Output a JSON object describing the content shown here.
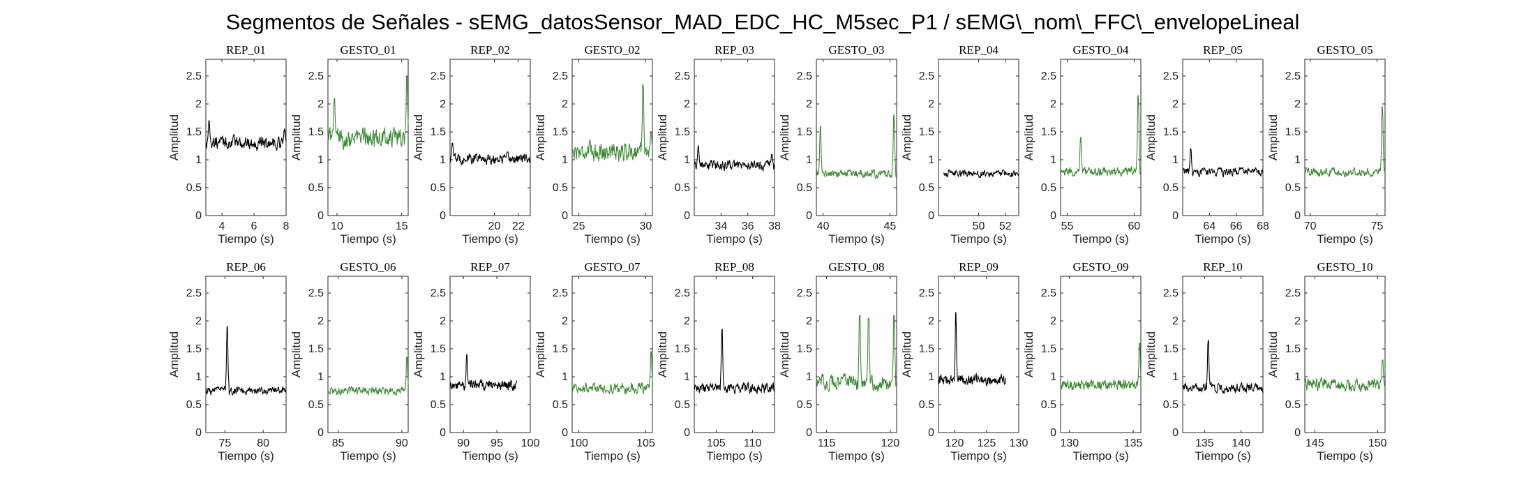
{
  "figure": {
    "title": "Segmentos de Señales - sEMG_datosSensor_MAD_EDC_HC_M5sec_P1 / sEMG\\_nom\\_FFC\\_envelopeLineal"
  },
  "colors": {
    "rep": "#000000",
    "gesto": "#3d8a34",
    "axis": "#262626"
  },
  "chart_data": [
    {
      "type": "line",
      "title": "REP_01",
      "xlabel": "Tiempo (s)",
      "ylabel": "Amplitud",
      "xlim": [
        3,
        8
      ],
      "ylim": [
        0,
        2.8
      ],
      "xticks": [
        4,
        6,
        8
      ],
      "yticks": [
        0,
        0.5,
        1,
        1.5,
        2,
        2.5
      ],
      "series": [
        {
          "color": "#000000",
          "x_range": [
            3,
            8
          ],
          "base": 1.3,
          "noise": 0.16,
          "spikes": [
            [
              3.2,
              1.7
            ],
            [
              7.9,
              1.55
            ]
          ]
        }
      ]
    },
    {
      "type": "line",
      "title": "GESTO_01",
      "xlabel": "Tiempo (s)",
      "ylabel": "Amplitud",
      "xlim": [
        9.3,
        15.5
      ],
      "ylim": [
        0,
        2.8
      ],
      "xticks": [
        10,
        15
      ],
      "yticks": [
        0,
        0.5,
        1,
        1.5,
        2,
        2.5
      ],
      "series": [
        {
          "color": "#3d8a34",
          "x_range": [
            9.3,
            15.5
          ],
          "base": 1.4,
          "noise": 0.24,
          "spikes": [
            [
              9.8,
              2.1
            ],
            [
              15.4,
              2.5
            ]
          ]
        }
      ]
    },
    {
      "type": "line",
      "title": "REP_02",
      "xlabel": "Tiempo (s)",
      "ylabel": "Amplitud",
      "xlim": [
        16.3,
        23
      ],
      "ylim": [
        0,
        2.8
      ],
      "xticks": [
        20,
        22
      ],
      "yticks": [
        0,
        0.5,
        1,
        1.5,
        2,
        2.5
      ],
      "series": [
        {
          "color": "#000000",
          "x_range": [
            16.3,
            23
          ],
          "base": 1.02,
          "noise": 0.13,
          "spikes": [
            [
              16.5,
              1.3
            ]
          ]
        }
      ]
    },
    {
      "type": "line",
      "title": "GESTO_02",
      "xlabel": "Tiempo (s)",
      "ylabel": "Amplitud",
      "xlim": [
        24.5,
        30.5
      ],
      "ylim": [
        0,
        2.8
      ],
      "xticks": [
        25,
        30
      ],
      "yticks": [
        0,
        0.5,
        1,
        1.5,
        2,
        2.5
      ],
      "series": [
        {
          "color": "#3d8a34",
          "x_range": [
            24.5,
            30.5
          ],
          "base": 1.15,
          "noise": 0.22,
          "spikes": [
            [
              29.8,
              2.35
            ],
            [
              30.4,
              1.5
            ]
          ]
        }
      ]
    },
    {
      "type": "line",
      "title": "REP_03",
      "xlabel": "Tiempo (s)",
      "ylabel": "Amplitud",
      "xlim": [
        32,
        38
      ],
      "ylim": [
        0,
        2.8
      ],
      "xticks": [
        34,
        36,
        38
      ],
      "yticks": [
        0,
        0.5,
        1,
        1.5,
        2,
        2.5
      ],
      "series": [
        {
          "color": "#000000",
          "x_range": [
            32,
            38
          ],
          "base": 0.9,
          "noise": 0.12,
          "spikes": [
            [
              32.3,
              1.25
            ],
            [
              37.8,
              1.1
            ]
          ]
        }
      ]
    },
    {
      "type": "line",
      "title": "GESTO_03",
      "xlabel": "Tiempo (s)",
      "ylabel": "Amplitud",
      "xlim": [
        39.5,
        45.5
      ],
      "ylim": [
        0,
        2.8
      ],
      "xticks": [
        40,
        45
      ],
      "yticks": [
        0,
        0.5,
        1,
        1.5,
        2,
        2.5
      ],
      "series": [
        {
          "color": "#3d8a34",
          "x_range": [
            39.5,
            45.5
          ],
          "base": 0.75,
          "noise": 0.1,
          "spikes": [
            [
              39.8,
              1.6
            ],
            [
              45.3,
              1.8
            ]
          ]
        }
      ]
    },
    {
      "type": "line",
      "title": "REP_04",
      "xlabel": "Tiempo (s)",
      "ylabel": "Amplitud",
      "xlim": [
        47,
        53
      ],
      "ylim": [
        0,
        2.8
      ],
      "xticks": [
        50,
        52
      ],
      "yticks": [
        0,
        0.5,
        1,
        1.5,
        2,
        2.5
      ],
      "series": [
        {
          "color": "#000000",
          "x_range": [
            47.4,
            53
          ],
          "base": 0.75,
          "noise": 0.08,
          "spikes": []
        }
      ]
    },
    {
      "type": "line",
      "title": "GESTO_04",
      "xlabel": "Tiempo (s)",
      "ylabel": "Amplitud",
      "xlim": [
        54.5,
        60.5
      ],
      "ylim": [
        0,
        2.8
      ],
      "xticks": [
        55,
        60
      ],
      "yticks": [
        0,
        0.5,
        1,
        1.5,
        2,
        2.5
      ],
      "series": [
        {
          "color": "#3d8a34",
          "x_range": [
            54.5,
            60.5
          ],
          "base": 0.78,
          "noise": 0.11,
          "spikes": [
            [
              56.0,
              1.4
            ],
            [
              60.3,
              2.15
            ]
          ]
        }
      ]
    },
    {
      "type": "line",
      "title": "REP_05",
      "xlabel": "Tiempo (s)",
      "ylabel": "Amplitud",
      "xlim": [
        62,
        68
      ],
      "ylim": [
        0,
        2.8
      ],
      "xticks": [
        64,
        66,
        68
      ],
      "yticks": [
        0,
        0.5,
        1,
        1.5,
        2,
        2.5
      ],
      "series": [
        {
          "color": "#000000",
          "x_range": [
            62,
            68
          ],
          "base": 0.78,
          "noise": 0.1,
          "spikes": [
            [
              62.6,
              1.2
            ]
          ]
        }
      ]
    },
    {
      "type": "line",
      "title": "GESTO_05",
      "xlabel": "Tiempo (s)",
      "ylabel": "Amplitud",
      "xlim": [
        69.6,
        75.6
      ],
      "ylim": [
        0,
        2.8
      ],
      "xticks": [
        70,
        75
      ],
      "yticks": [
        0,
        0.5,
        1,
        1.5,
        2,
        2.5
      ],
      "series": [
        {
          "color": "#3d8a34",
          "x_range": [
            69.6,
            75.6
          ],
          "base": 0.78,
          "noise": 0.1,
          "spikes": [
            [
              75.4,
              1.95
            ]
          ]
        }
      ]
    },
    {
      "type": "line",
      "title": "REP_06",
      "xlabel": "Tiempo (s)",
      "ylabel": "Amplitud",
      "xlim": [
        72.5,
        83
      ],
      "ylim": [
        0,
        2.8
      ],
      "xticks": [
        75,
        80
      ],
      "yticks": [
        0,
        0.5,
        1,
        1.5,
        2,
        2.5
      ],
      "series": [
        {
          "color": "#000000",
          "x_range": [
            72.5,
            83
          ],
          "base": 0.75,
          "noise": 0.09,
          "spikes": [
            [
              75.3,
              1.9
            ]
          ]
        }
      ]
    },
    {
      "type": "line",
      "title": "GESTO_06",
      "xlabel": "Tiempo (s)",
      "ylabel": "Amplitud",
      "xlim": [
        84.2,
        90.5
      ],
      "ylim": [
        0,
        2.8
      ],
      "xticks": [
        85,
        90
      ],
      "yticks": [
        0,
        0.5,
        1,
        1.5,
        2,
        2.5
      ],
      "series": [
        {
          "color": "#3d8a34",
          "x_range": [
            84.2,
            90.5
          ],
          "base": 0.75,
          "noise": 0.1,
          "spikes": [
            [
              90.4,
              1.35
            ]
          ]
        }
      ]
    },
    {
      "type": "line",
      "title": "REP_07",
      "xlabel": "Tiempo (s)",
      "ylabel": "Amplitud",
      "xlim": [
        88,
        100
      ],
      "ylim": [
        0,
        2.8
      ],
      "xticks": [
        90,
        95,
        100
      ],
      "yticks": [
        0,
        0.5,
        1,
        1.5,
        2,
        2.5
      ],
      "series": [
        {
          "color": "#000000",
          "x_range": [
            88,
            98
          ],
          "base": 0.85,
          "noise": 0.12,
          "spikes": [
            [
              90.5,
              1.4
            ]
          ]
        }
      ]
    },
    {
      "type": "line",
      "title": "GESTO_07",
      "xlabel": "Tiempo (s)",
      "ylabel": "Amplitud",
      "xlim": [
        99.5,
        105.5
      ],
      "ylim": [
        0,
        2.8
      ],
      "xticks": [
        100,
        105
      ],
      "yticks": [
        0,
        0.5,
        1,
        1.5,
        2,
        2.5
      ],
      "series": [
        {
          "color": "#3d8a34",
          "x_range": [
            99.5,
            105.5
          ],
          "base": 0.8,
          "noise": 0.13,
          "spikes": [
            [
              105.4,
              1.45
            ]
          ]
        }
      ]
    },
    {
      "type": "line",
      "title": "REP_08",
      "xlabel": "Tiempo (s)",
      "ylabel": "Amplitud",
      "xlim": [
        102,
        113
      ],
      "ylim": [
        0,
        2.8
      ],
      "xticks": [
        105,
        110
      ],
      "yticks": [
        0,
        0.5,
        1,
        1.5,
        2,
        2.5
      ],
      "series": [
        {
          "color": "#000000",
          "x_range": [
            102,
            113
          ],
          "base": 0.8,
          "noise": 0.12,
          "spikes": [
            [
              105.8,
              1.85
            ]
          ]
        }
      ]
    },
    {
      "type": "line",
      "title": "GESTO_08",
      "xlabel": "Tiempo (s)",
      "ylabel": "Amplitud",
      "xlim": [
        114.2,
        120.5
      ],
      "ylim": [
        0,
        2.8
      ],
      "xticks": [
        115,
        120
      ],
      "yticks": [
        0,
        0.5,
        1,
        1.5,
        2,
        2.5
      ],
      "series": [
        {
          "color": "#3d8a34",
          "x_range": [
            114.2,
            120.5
          ],
          "base": 0.9,
          "noise": 0.18,
          "spikes": [
            [
              117.6,
              2.1
            ],
            [
              118.3,
              2.05
            ],
            [
              120.3,
              2.1
            ]
          ]
        }
      ]
    },
    {
      "type": "line",
      "title": "REP_09",
      "xlabel": "Tiempo (s)",
      "ylabel": "Amplitud",
      "xlim": [
        117.5,
        130
      ],
      "ylim": [
        0,
        2.8
      ],
      "xticks": [
        120,
        125,
        130
      ],
      "yticks": [
        0,
        0.5,
        1,
        1.5,
        2,
        2.5
      ],
      "series": [
        {
          "color": "#000000",
          "x_range": [
            117.5,
            128
          ],
          "base": 0.95,
          "noise": 0.13,
          "spikes": [
            [
              120.2,
              2.15
            ]
          ]
        }
      ]
    },
    {
      "type": "line",
      "title": "GESTO_09",
      "xlabel": "Tiempo (s)",
      "ylabel": "Amplitud",
      "xlim": [
        129.3,
        135.6
      ],
      "ylim": [
        0,
        2.8
      ],
      "xticks": [
        130,
        135
      ],
      "yticks": [
        0,
        0.5,
        1,
        1.5,
        2,
        2.5
      ],
      "series": [
        {
          "color": "#3d8a34",
          "x_range": [
            129.3,
            135.6
          ],
          "base": 0.85,
          "noise": 0.13,
          "spikes": [
            [
              135.5,
              1.6
            ]
          ]
        }
      ]
    },
    {
      "type": "line",
      "title": "REP_10",
      "xlabel": "Tiempo (s)",
      "ylabel": "Amplitud",
      "xlim": [
        132,
        143
      ],
      "ylim": [
        0,
        2.8
      ],
      "xticks": [
        135,
        140
      ],
      "yticks": [
        0,
        0.5,
        1,
        1.5,
        2,
        2.5
      ],
      "series": [
        {
          "color": "#000000",
          "x_range": [
            132,
            143
          ],
          "base": 0.8,
          "noise": 0.12,
          "spikes": [
            [
              135.5,
              1.65
            ]
          ]
        }
      ]
    },
    {
      "type": "line",
      "title": "GESTO_10",
      "xlabel": "Tiempo (s)",
      "ylabel": "Amplitud",
      "xlim": [
        144.2,
        150.6
      ],
      "ylim": [
        0,
        2.8
      ],
      "xticks": [
        145,
        150
      ],
      "yticks": [
        0,
        0.5,
        1,
        1.5,
        2,
        2.5
      ],
      "series": [
        {
          "color": "#3d8a34",
          "x_range": [
            144.2,
            150.6
          ],
          "base": 0.85,
          "noise": 0.15,
          "spikes": [
            [
              150.4,
              1.3
            ]
          ]
        }
      ]
    }
  ]
}
